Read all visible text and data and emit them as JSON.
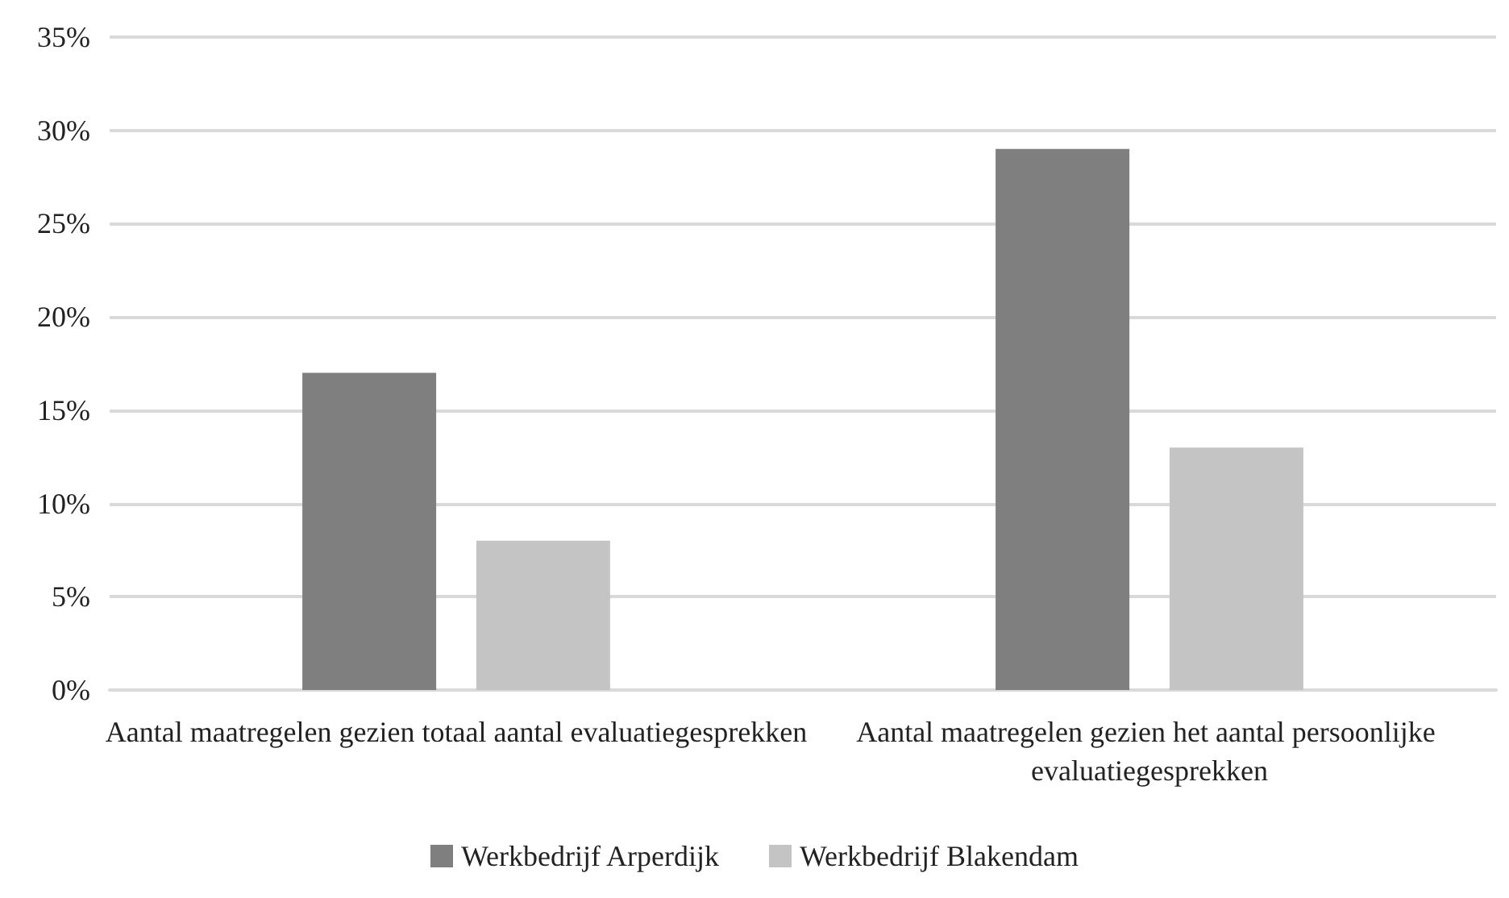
{
  "chart_data": {
    "type": "bar",
    "categories": [
      "Aantal maatregelen gezien totaal aantal evaluatiegesprekken",
      "Aantal maatregelen gezien het aantal persoonlijke evaluatiegesprekken"
    ],
    "series": [
      {
        "name": "Werkbedrijf Arperdijk",
        "color": "#7f7f7f",
        "values": [
          17,
          29
        ]
      },
      {
        "name": "Werkbedrijf Blakendam",
        "color": "#c4c4c4",
        "values": [
          8,
          13
        ]
      }
    ],
    "ylim": [
      0,
      35
    ],
    "yticks": [
      {
        "value": 0,
        "label": "0%"
      },
      {
        "value": 5,
        "label": "5%"
      },
      {
        "value": 10,
        "label": "10%"
      },
      {
        "value": 15,
        "label": "15%"
      },
      {
        "value": 20,
        "label": "20%"
      },
      {
        "value": 25,
        "label": "25%"
      },
      {
        "value": 30,
        "label": "30%"
      },
      {
        "value": 35,
        "label": "35%"
      }
    ],
    "grid": "y",
    "legend": "bottom"
  }
}
